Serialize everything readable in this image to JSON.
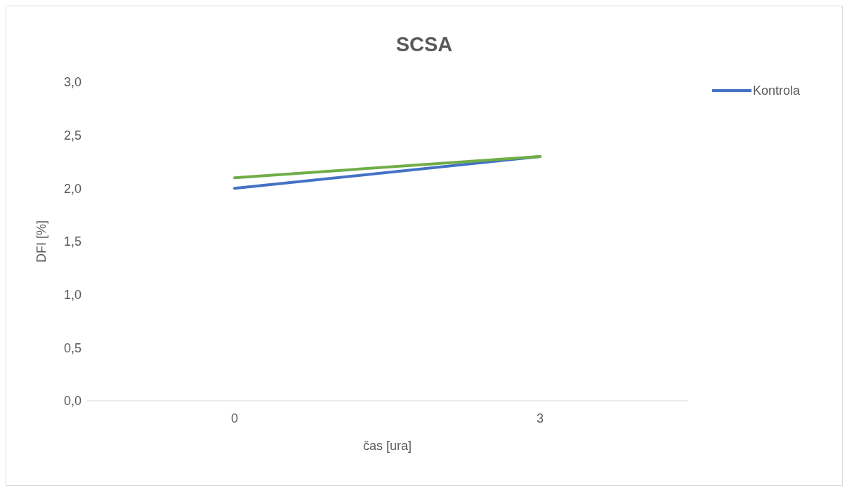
{
  "chart_data": {
    "type": "line",
    "title": "SCSA",
    "xlabel": "čas [ura]",
    "ylabel": "DFI [%]",
    "categories": [
      "0",
      "3"
    ],
    "series": [
      {
        "name": "Kontrola",
        "color": "#4472c4",
        "values": [
          2.0,
          2.3
        ]
      },
      {
        "color": "#70ad47",
        "values": [
          2.1,
          2.3
        ]
      }
    ],
    "ylim": [
      0,
      3
    ],
    "yticks": [
      {
        "value": 0,
        "label": "0,0"
      },
      {
        "value": 0.5,
        "label": "0,5"
      },
      {
        "value": 1,
        "label": "1,0"
      },
      {
        "value": 1.5,
        "label": "1,5"
      },
      {
        "value": 2,
        "label": "2,0"
      },
      {
        "value": 2.5,
        "label": "2,5"
      },
      {
        "value": 3,
        "label": "3,0"
      }
    ],
    "legend": "right",
    "marker": "none",
    "line_style": "solid"
  }
}
